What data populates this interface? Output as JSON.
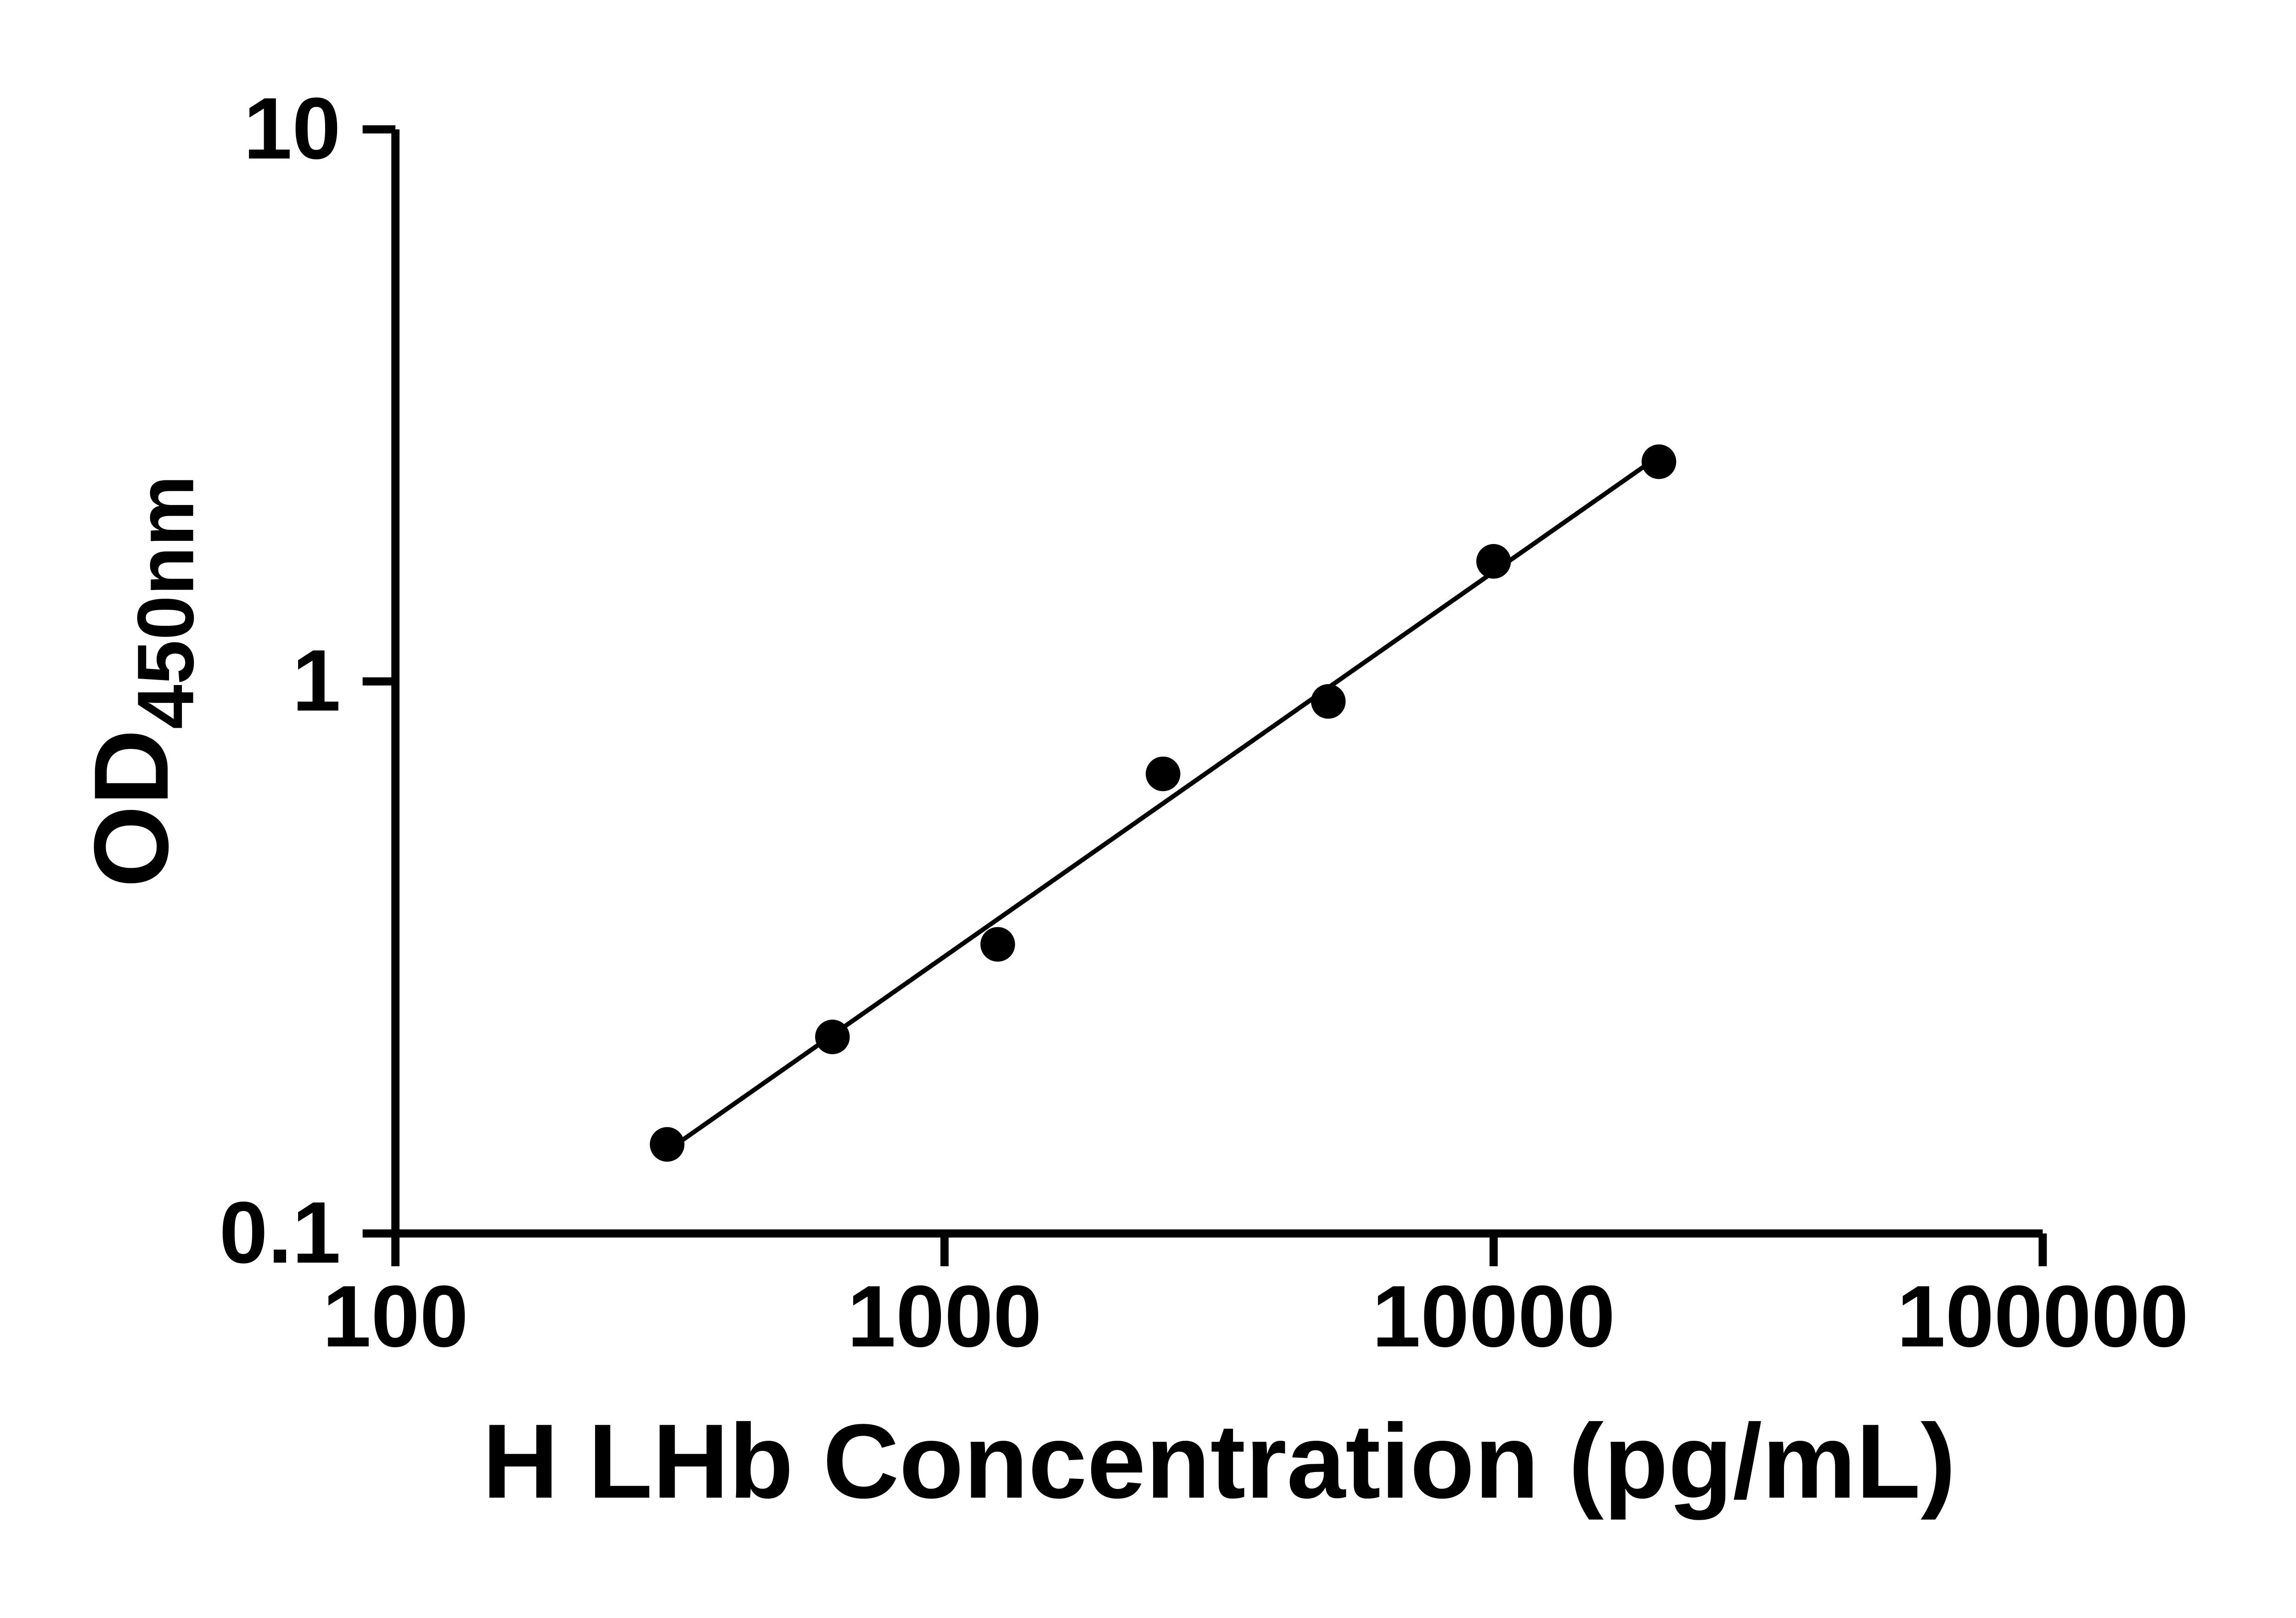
{
  "chart_data": {
    "type": "scatter",
    "title": "",
    "xlabel": "H LHb Concentration (pg/mL)",
    "ylabel_main": "OD",
    "ylabel_sub": "450nm",
    "x_scale": "log",
    "y_scale": "log",
    "xlim": [
      100,
      100000
    ],
    "ylim": [
      0.1,
      10
    ],
    "x_ticks": [
      100,
      1000,
      10000,
      100000
    ],
    "x_tick_labels": [
      "100",
      "1000",
      "10000",
      "100000"
    ],
    "y_ticks": [
      0.1,
      1,
      10
    ],
    "y_tick_labels": [
      "0.1",
      "1",
      "10"
    ],
    "points": {
      "x": [
        312.5,
        625,
        1250,
        2500,
        5000,
        10000,
        20000
      ],
      "y": [
        0.145,
        0.227,
        0.334,
        0.68,
        0.92,
        1.65,
        2.5
      ]
    },
    "trendline": true,
    "legend": "none",
    "grid": "off",
    "marker_color": "#000000",
    "line_color": "#000000",
    "axis_color": "#000000",
    "background": "#ffffff"
  }
}
